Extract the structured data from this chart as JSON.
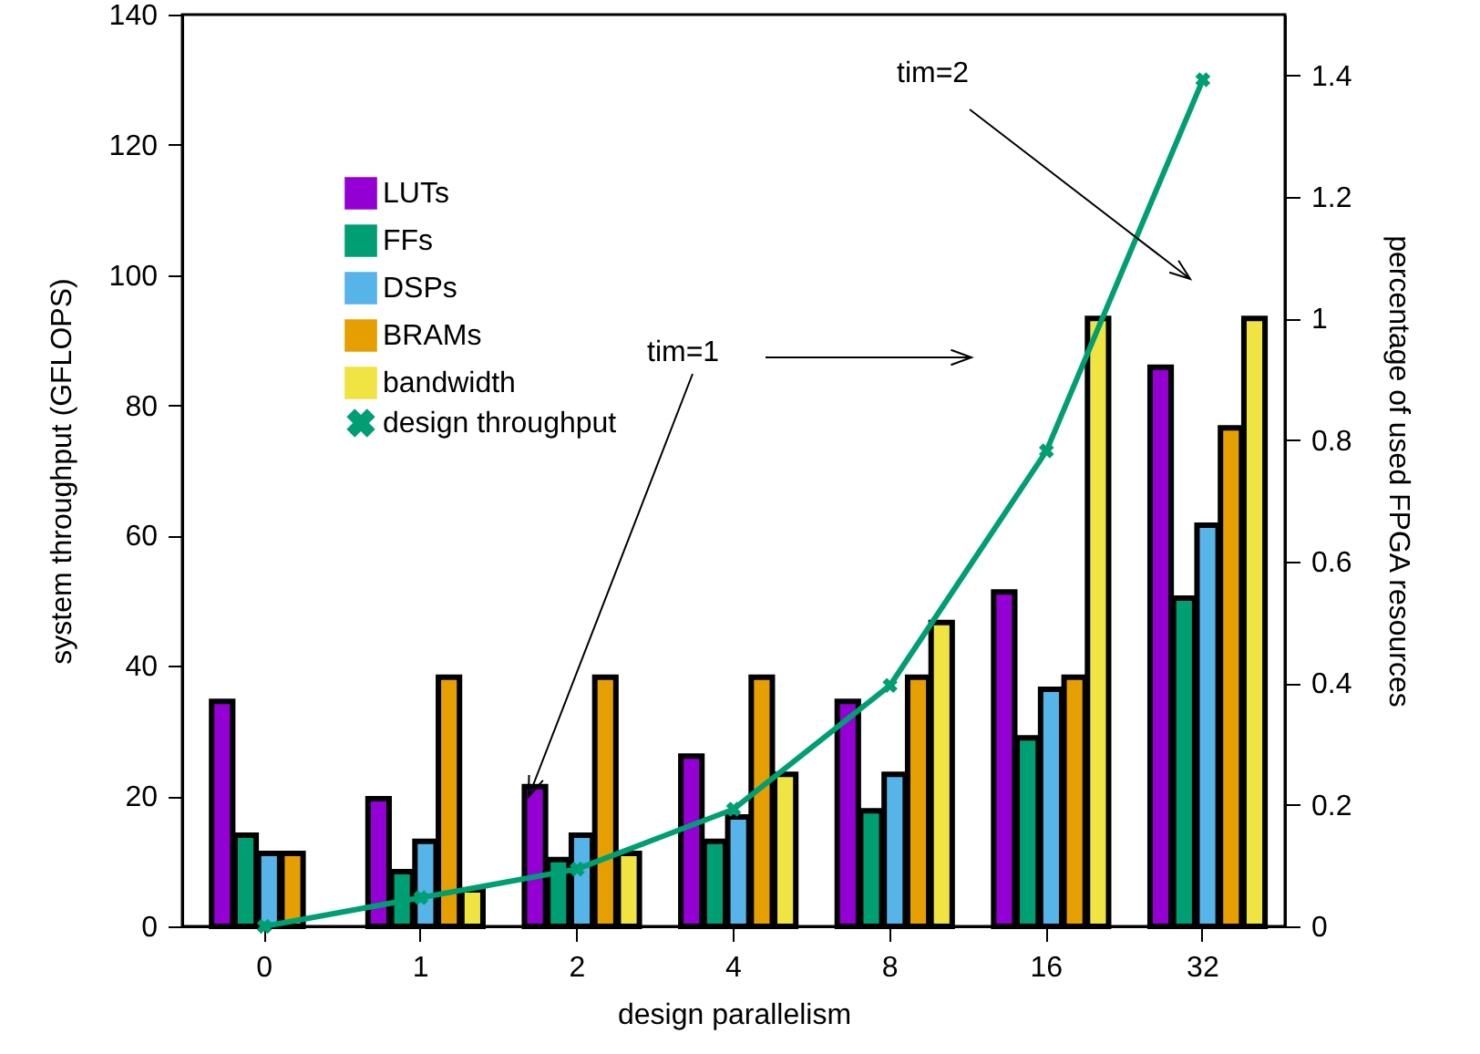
{
  "chart_data": {
    "type": "bar",
    "xlabel": "design parallelism",
    "ylabel": "system throughput (GFLOPS)",
    "y2label": "percentage of used FPGA resources",
    "categories": [
      "0",
      "1",
      "2",
      "4",
      "8",
      "16",
      "32"
    ],
    "series": [
      {
        "name": "LUTs",
        "color": "#9400d3",
        "axis": "y2",
        "values": [
          0.37,
          0.21,
          0.23,
          0.28,
          0.37,
          0.55,
          0.92
        ]
      },
      {
        "name": "FFs",
        "color": "#009e73",
        "axis": "y2",
        "values": [
          0.15,
          0.09,
          0.11,
          0.14,
          0.19,
          0.31,
          0.54
        ]
      },
      {
        "name": "DSPs",
        "color": "#56b4e9",
        "axis": "y2",
        "values": [
          0.12,
          0.14,
          0.15,
          0.18,
          0.25,
          0.39,
          0.66
        ]
      },
      {
        "name": "BRAMs",
        "color": "#e69f00",
        "axis": "y2",
        "values": [
          0.12,
          0.41,
          0.41,
          0.41,
          0.41,
          0.41,
          0.82
        ]
      },
      {
        "name": "bandwidth",
        "color": "#f0e442",
        "axis": "y2",
        "values": [
          null,
          0.06,
          0.12,
          0.25,
          0.5,
          1.0,
          1.0
        ]
      },
      {
        "name": "design throughput",
        "type": "line",
        "color": "#009e73",
        "marker": "cross",
        "values": [
          0,
          4.4,
          8.8,
          18,
          37,
          73,
          130
        ]
      }
    ],
    "ylim": [
      0,
      140
    ],
    "yticks": [
      0,
      20,
      40,
      60,
      80,
      100,
      120,
      140
    ],
    "y2lim": [
      0,
      1.5
    ],
    "y2ticks": [
      0,
      0.2,
      0.4,
      0.6,
      0.8,
      1,
      1.2,
      1.4
    ],
    "grid": false,
    "legend": "top left",
    "annotations": [
      "tim=1",
      "tim=2"
    ]
  }
}
